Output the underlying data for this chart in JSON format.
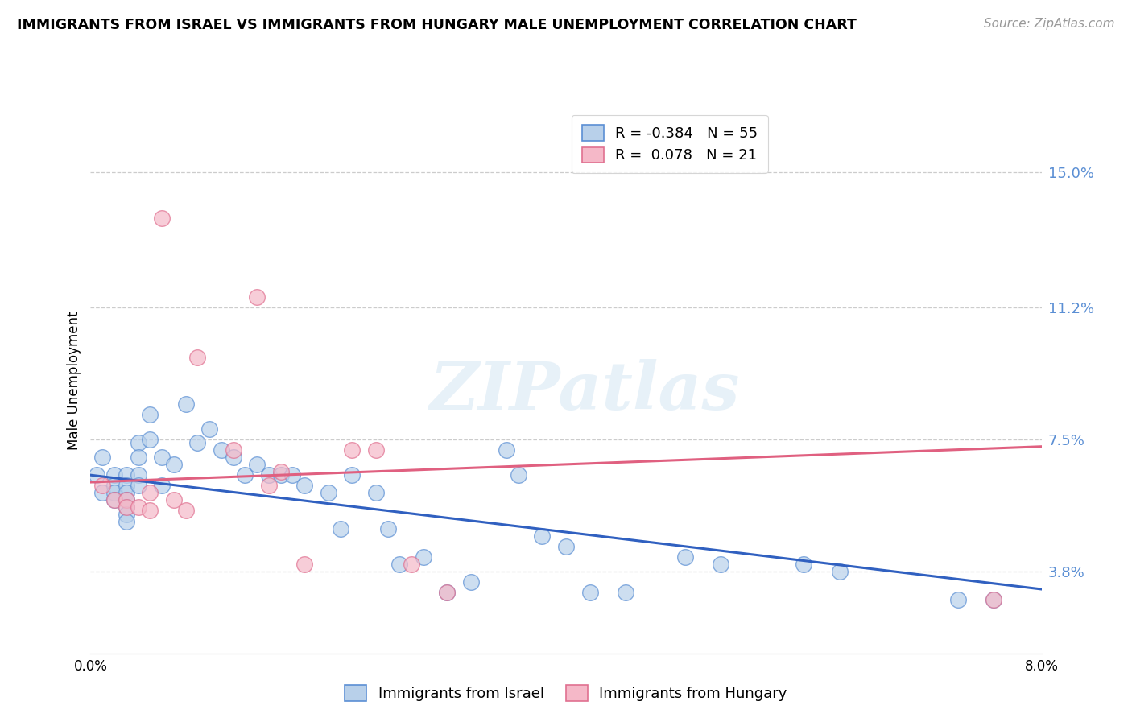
{
  "title": "IMMIGRANTS FROM ISRAEL VS IMMIGRANTS FROM HUNGARY MALE UNEMPLOYMENT CORRELATION CHART",
  "source": "Source: ZipAtlas.com",
  "ylabel": "Male Unemployment",
  "ytick_labels": [
    "15.0%",
    "11.2%",
    "7.5%",
    "3.8%"
  ],
  "ytick_values": [
    0.15,
    0.112,
    0.075,
    0.038
  ],
  "xlim": [
    0.0,
    0.08
  ],
  "ylim": [
    0.015,
    0.168
  ],
  "israel_color": "#b8d0ea",
  "hungary_color": "#f5b8c8",
  "israel_edge_color": "#5b8fd4",
  "hungary_edge_color": "#e07090",
  "israel_line_color": "#3060c0",
  "hungary_line_color": "#e06080",
  "ytick_color": "#5b8fd4",
  "israel_R": "-0.384",
  "israel_N": "55",
  "hungary_R": "0.078",
  "hungary_N": "21",
  "israel_scatter_x": [
    0.0005,
    0.001,
    0.001,
    0.002,
    0.002,
    0.002,
    0.002,
    0.003,
    0.003,
    0.003,
    0.003,
    0.003,
    0.003,
    0.003,
    0.004,
    0.004,
    0.004,
    0.004,
    0.005,
    0.005,
    0.006,
    0.006,
    0.007,
    0.008,
    0.009,
    0.01,
    0.011,
    0.012,
    0.013,
    0.014,
    0.015,
    0.016,
    0.017,
    0.018,
    0.02,
    0.021,
    0.022,
    0.024,
    0.025,
    0.026,
    0.028,
    0.03,
    0.032,
    0.035,
    0.036,
    0.038,
    0.04,
    0.042,
    0.045,
    0.05,
    0.053,
    0.06,
    0.063,
    0.073,
    0.076
  ],
  "israel_scatter_y": [
    0.065,
    0.07,
    0.06,
    0.065,
    0.062,
    0.06,
    0.058,
    0.065,
    0.062,
    0.06,
    0.058,
    0.056,
    0.054,
    0.052,
    0.074,
    0.07,
    0.065,
    0.062,
    0.082,
    0.075,
    0.07,
    0.062,
    0.068,
    0.085,
    0.074,
    0.078,
    0.072,
    0.07,
    0.065,
    0.068,
    0.065,
    0.065,
    0.065,
    0.062,
    0.06,
    0.05,
    0.065,
    0.06,
    0.05,
    0.04,
    0.042,
    0.032,
    0.035,
    0.072,
    0.065,
    0.048,
    0.045,
    0.032,
    0.032,
    0.042,
    0.04,
    0.04,
    0.038,
    0.03,
    0.03
  ],
  "hungary_scatter_x": [
    0.001,
    0.002,
    0.003,
    0.003,
    0.004,
    0.005,
    0.005,
    0.006,
    0.007,
    0.008,
    0.009,
    0.012,
    0.014,
    0.015,
    0.016,
    0.018,
    0.022,
    0.024,
    0.027,
    0.03,
    0.076
  ],
  "hungary_scatter_y": [
    0.062,
    0.058,
    0.058,
    0.056,
    0.056,
    0.06,
    0.055,
    0.137,
    0.058,
    0.055,
    0.098,
    0.072,
    0.115,
    0.062,
    0.066,
    0.04,
    0.072,
    0.072,
    0.04,
    0.032,
    0.03
  ],
  "israel_trend_x": [
    0.0,
    0.08
  ],
  "israel_trend_y": [
    0.065,
    0.033
  ],
  "hungary_trend_x": [
    0.0,
    0.08
  ],
  "hungary_trend_y": [
    0.063,
    0.073
  ],
  "grid_color": "#cccccc",
  "spine_color": "#aaaaaa"
}
